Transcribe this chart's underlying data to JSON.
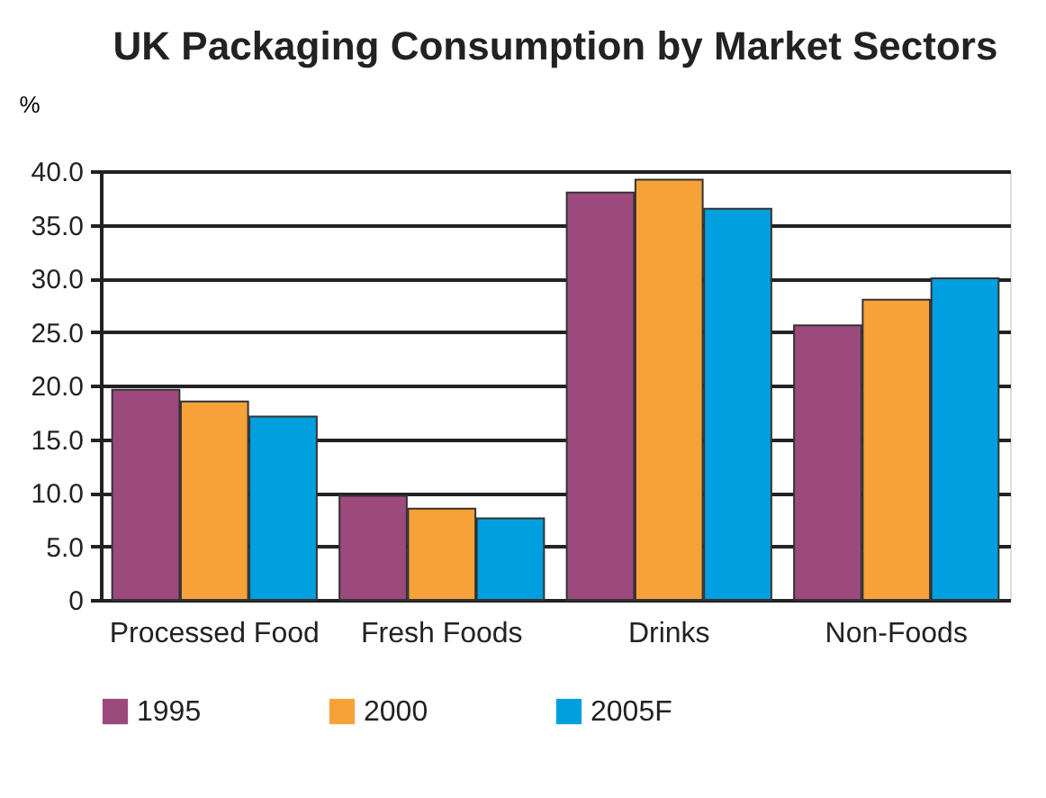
{
  "chart_data": {
    "type": "bar",
    "title": "UK Packaging Consumption by Market Sectors",
    "ylabel": "%",
    "categories": [
      "Processed Food",
      "Fresh Foods",
      "Drinks",
      "Non-Foods"
    ],
    "series": [
      {
        "name": "1995",
        "color": "#9c4a7e",
        "values": [
          19.6,
          9.7,
          38.0,
          25.6
        ]
      },
      {
        "name": "2000",
        "color": "#f7a239",
        "values": [
          18.5,
          8.5,
          39.2,
          28.0
        ]
      },
      {
        "name": "2005F",
        "color": "#00a0e0",
        "values": [
          17.1,
          7.6,
          36.5,
          30.0
        ]
      }
    ],
    "ylim": [
      0,
      40
    ],
    "yticks": [
      0,
      {
        "value": 5,
        "label": "5.0"
      },
      {
        "value": 10,
        "label": "10.0"
      },
      {
        "value": 15,
        "label": "15.0"
      },
      {
        "value": 20,
        "label": "20.0"
      },
      {
        "value": 25,
        "label": "25.0"
      },
      {
        "value": 30,
        "label": "30.0"
      },
      {
        "value": 35,
        "label": "35.0"
      },
      {
        "value": 40,
        "label": "40.0"
      }
    ],
    "grid": "y",
    "legend": "bottom"
  }
}
